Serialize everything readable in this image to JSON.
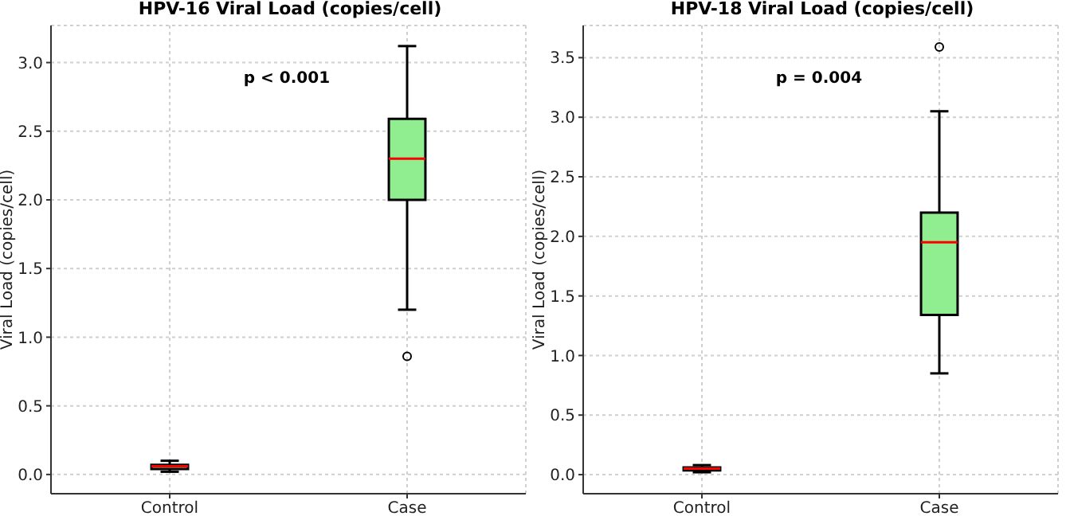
{
  "chart_data": [
    {
      "type": "box",
      "title": "HPV-16 Viral Load (copies/cell)",
      "ylabel": "Viral Load (copies/cell)",
      "categories": [
        "Control",
        "Case"
      ],
      "color": "#90ee90",
      "boxes": [
        {
          "low": 0.02,
          "q1": 0.04,
          "median": 0.06,
          "q3": 0.07,
          "high": 0.1
        },
        {
          "low": 1.2,
          "q1": 2.0,
          "median": 2.3,
          "q3": 2.59,
          "high": 3.12,
          "outliers": [
            0.86
          ]
        }
      ],
      "ylim": [
        -0.14,
        3.27
      ],
      "yticks": [
        {
          "value": 0,
          "label": "0.0"
        },
        {
          "value": 0.5,
          "label": "0.5"
        },
        {
          "value": 1,
          "label": "1.0"
        },
        {
          "value": 1.5,
          "label": "1.5"
        },
        {
          "value": 2,
          "label": "2.0"
        },
        {
          "value": 2.5,
          "label": "2.5"
        },
        {
          "value": 3,
          "label": "3.0"
        }
      ],
      "grid": true,
      "annotations": [
        "p < 0.001"
      ]
    },
    {
      "type": "box",
      "title": "HPV-18 Viral Load (copies/cell)",
      "ylabel": "Viral Load (copies/cell)",
      "categories": [
        "Control",
        "Case"
      ],
      "color": "#90ee90",
      "boxes": [
        {
          "low": 0.02,
          "q1": 0.035,
          "median": 0.05,
          "q3": 0.06,
          "high": 0.08
        },
        {
          "low": 0.85,
          "q1": 1.34,
          "median": 1.95,
          "q3": 2.2,
          "high": 3.05,
          "outliers": [
            3.59
          ]
        }
      ],
      "ylim": [
        -0.16,
        3.77
      ],
      "yticks": [
        {
          "value": 0,
          "label": "0.0"
        },
        {
          "value": 0.5,
          "label": "0.5"
        },
        {
          "value": 1,
          "label": "1.0"
        },
        {
          "value": 1.5,
          "label": "1.5"
        },
        {
          "value": 2,
          "label": "2.0"
        },
        {
          "value": 2.5,
          "label": "2.5"
        },
        {
          "value": 3,
          "label": "3.0"
        },
        {
          "value": 3.5,
          "label": "3.5"
        }
      ],
      "grid": true,
      "annotations": [
        "p = 0.004"
      ]
    }
  ]
}
